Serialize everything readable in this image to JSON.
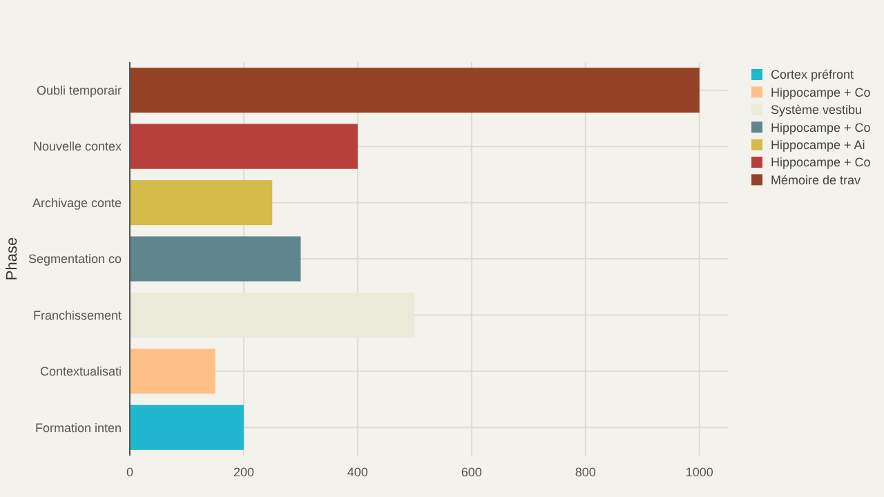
{
  "chart_data": {
    "type": "bar",
    "orientation": "horizontal",
    "ylabel": "Phase",
    "categories": [
      "Oubli temporair",
      "Nouvelle contex",
      "Archivage conte",
      "Segmentation co",
      "Franchissement",
      "Contextualisati",
      "Formation inten"
    ],
    "series": [
      {
        "name": "Cortex préfront",
        "color": "#21b8cf",
        "values": [
          null,
          null,
          null,
          null,
          null,
          null,
          200
        ]
      },
      {
        "name": "Hippocampe + Co",
        "color": "#ffc088",
        "values": [
          null,
          null,
          null,
          null,
          null,
          150,
          null
        ]
      },
      {
        "name": "Système vestibu",
        "color": "#ebead8",
        "values": [
          null,
          null,
          null,
          null,
          500,
          null,
          null
        ]
      },
      {
        "name": "Hippocampe + Co",
        "color": "#5f868c",
        "values": [
          null,
          null,
          null,
          300,
          null,
          null,
          null
        ]
      },
      {
        "name": "Hippocampe + Ai",
        "color": "#d4bb4a",
        "values": [
          null,
          null,
          250,
          null,
          null,
          null,
          null
        ]
      },
      {
        "name": "Hippocampe + Co",
        "color": "#b8403c",
        "values": [
          null,
          400,
          null,
          null,
          null,
          null,
          null
        ]
      },
      {
        "name": "Mémoire de trav",
        "color": "#944326",
        "values": [
          1000,
          null,
          null,
          null,
          null,
          null,
          null
        ]
      }
    ],
    "xlim": [
      0,
      1050
    ],
    "xticks": [
      0,
      200,
      400,
      600,
      800,
      1000
    ],
    "grid": true,
    "legend": "top right"
  }
}
